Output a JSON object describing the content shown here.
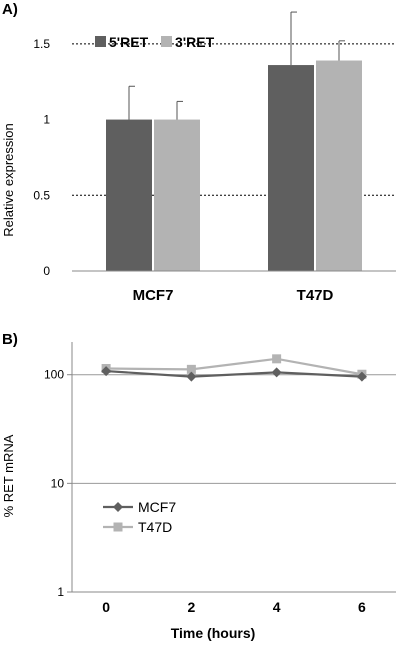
{
  "chart_data": [
    {
      "panel_label": "A)",
      "type": "bar",
      "categories": [
        "MCF7",
        "T47D"
      ],
      "series": [
        {
          "name": "5'RET",
          "values": [
            1.0,
            1.36
          ],
          "errors": [
            0.22,
            0.35
          ],
          "color": "#5f5f5f"
        },
        {
          "name": "3'RET",
          "values": [
            1.0,
            1.39
          ],
          "errors": [
            0.12,
            0.13
          ],
          "color": "#b3b3b3"
        }
      ],
      "reference_lines": [
        1.5,
        0.5
      ],
      "title": "",
      "xlabel": "",
      "ylabel": "Relative expression",
      "ylim": [
        0,
        1.75
      ],
      "yticks": [
        0,
        0.5,
        1,
        1.5
      ],
      "ytick_labels": [
        "0",
        "0.5",
        "1",
        "1.5"
      ],
      "legend_position": "top-left",
      "grid": false
    },
    {
      "panel_label": "B)",
      "type": "line",
      "x": [
        0,
        2,
        4,
        6
      ],
      "xticks": [
        0,
        2,
        4,
        6
      ],
      "xtick_labels": [
        "0",
        "2",
        "4",
        "6"
      ],
      "series": [
        {
          "name": "MCF7",
          "values": [
            108,
            96,
            105,
            96
          ],
          "color": "#5f5f5f",
          "marker": "diamond"
        },
        {
          "name": "T47D",
          "values": [
            114,
            112,
            140,
            101
          ],
          "color": "#b3b3b3",
          "marker": "square"
        }
      ],
      "title": "",
      "xlabel": "Time (hours)",
      "ylabel": "% RET mRNA",
      "yscale": "log",
      "ylim": [
        1,
        200
      ],
      "yticks": [
        1,
        10,
        100
      ],
      "ytick_labels": [
        "1",
        "10",
        "100"
      ],
      "xlim": [
        -0.8,
        6.8
      ],
      "legend_position": "center-left",
      "grid": true
    }
  ]
}
